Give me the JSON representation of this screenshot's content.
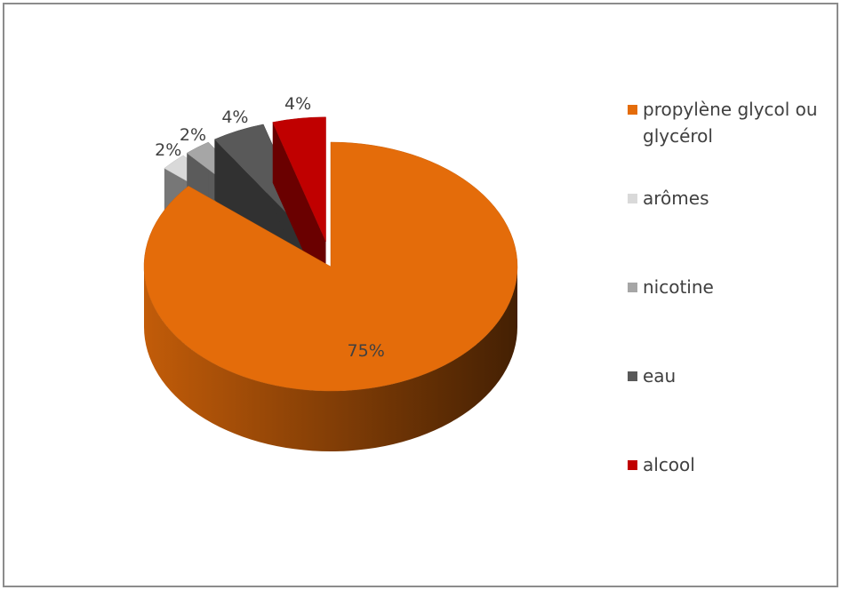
{
  "chart_data": {
    "type": "pie3d",
    "categories": [
      "propylène glycol ou glycérol",
      "arômes",
      "nicotine",
      "eau",
      "alcool"
    ],
    "values": [
      75,
      2,
      2,
      4,
      4
    ],
    "value_labels": [
      "75%",
      "2%",
      "2%",
      "4%",
      "4%"
    ],
    "colors": [
      "#e46c0a",
      "#d9d9d9",
      "#a6a6a6",
      "#595959",
      "#c00000"
    ],
    "legend": "right"
  }
}
